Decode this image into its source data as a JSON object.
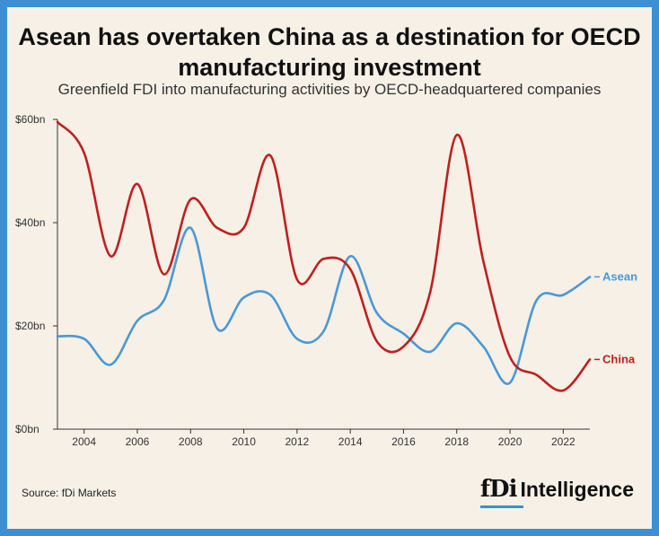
{
  "header": {
    "title": "Asean has overtaken China as a destination for OECD manufacturing investment",
    "subtitle": "Greenfield FDI into manufacturing activities by OECD-headquartered companies"
  },
  "footer": {
    "source": "Source: fDi Markets",
    "brand_mark": "fDi",
    "brand_name": "Intelligence"
  },
  "colors": {
    "background_border": "#3d8fd3",
    "panel": "#f6f0e6",
    "asean": "#4a98d6",
    "china": "#c01f1f"
  },
  "chart_data": {
    "type": "line",
    "x": [
      2003,
      2004,
      2005,
      2006,
      2007,
      2008,
      2009,
      2010,
      2011,
      2012,
      2013,
      2014,
      2015,
      2016,
      2017,
      2018,
      2019,
      2020,
      2021,
      2022,
      2023
    ],
    "xlim": [
      2003,
      2023
    ],
    "ylim": [
      0,
      60
    ],
    "x_ticks": [
      2004,
      2006,
      2008,
      2010,
      2012,
      2014,
      2016,
      2018,
      2020,
      2022
    ],
    "y_ticks": [
      {
        "value": 0,
        "label": "$0bn"
      },
      {
        "value": 20,
        "label": "$20bn"
      },
      {
        "value": 40,
        "label": "$40bn"
      },
      {
        "value": 60,
        "label": "$60bn"
      }
    ],
    "grid": false,
    "series": [
      {
        "name": "Asean",
        "color": "#4a98d6",
        "values": [
          18,
          17.5,
          12.5,
          21,
          25,
          39,
          19.5,
          25.5,
          26,
          17.5,
          19,
          33.5,
          22.5,
          18.5,
          15,
          20.5,
          16,
          9,
          25,
          26,
          29.5
        ]
      },
      {
        "name": "China",
        "color": "#c01f1f",
        "values": [
          59.5,
          53.5,
          33.5,
          47.5,
          30,
          44.5,
          39,
          39,
          53,
          29,
          33,
          31,
          17,
          16,
          26.5,
          57,
          32.5,
          14,
          10.5,
          7.5,
          13.5
        ]
      }
    ]
  }
}
